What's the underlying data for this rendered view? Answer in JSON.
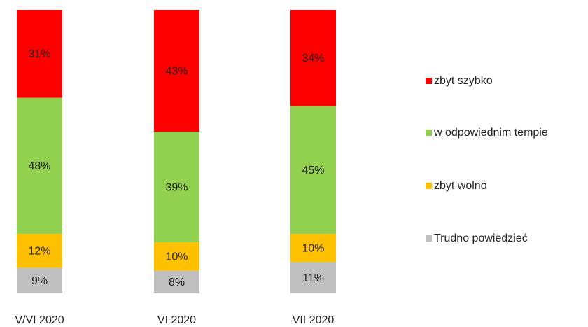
{
  "chart_data": {
    "type": "stacked_bar",
    "categories": [
      "V/VI 2020",
      "VI 2020",
      "VII 2020"
    ],
    "series": [
      {
        "name": "zbyt szybko",
        "color": "#ff0000",
        "values": [
          31,
          43,
          34
        ],
        "value_labels": [
          "31%",
          "43%",
          "34%"
        ]
      },
      {
        "name": "w odpowiednim tempie",
        "color": "#92d050",
        "values": [
          48,
          39,
          45
        ],
        "value_labels": [
          "48%",
          "39%",
          "45%"
        ]
      },
      {
        "name": "zbyt wolno",
        "color": "#ffc000",
        "values": [
          12,
          10,
          10
        ],
        "value_labels": [
          "12%",
          "10%",
          "10%"
        ]
      },
      {
        "name": "Trudno powiedzieć",
        "color": "#bfbfbf",
        "values": [
          9,
          8,
          11
        ],
        "value_labels": [
          "9%",
          "8%",
          "11%"
        ]
      }
    ],
    "legend": "right"
  }
}
